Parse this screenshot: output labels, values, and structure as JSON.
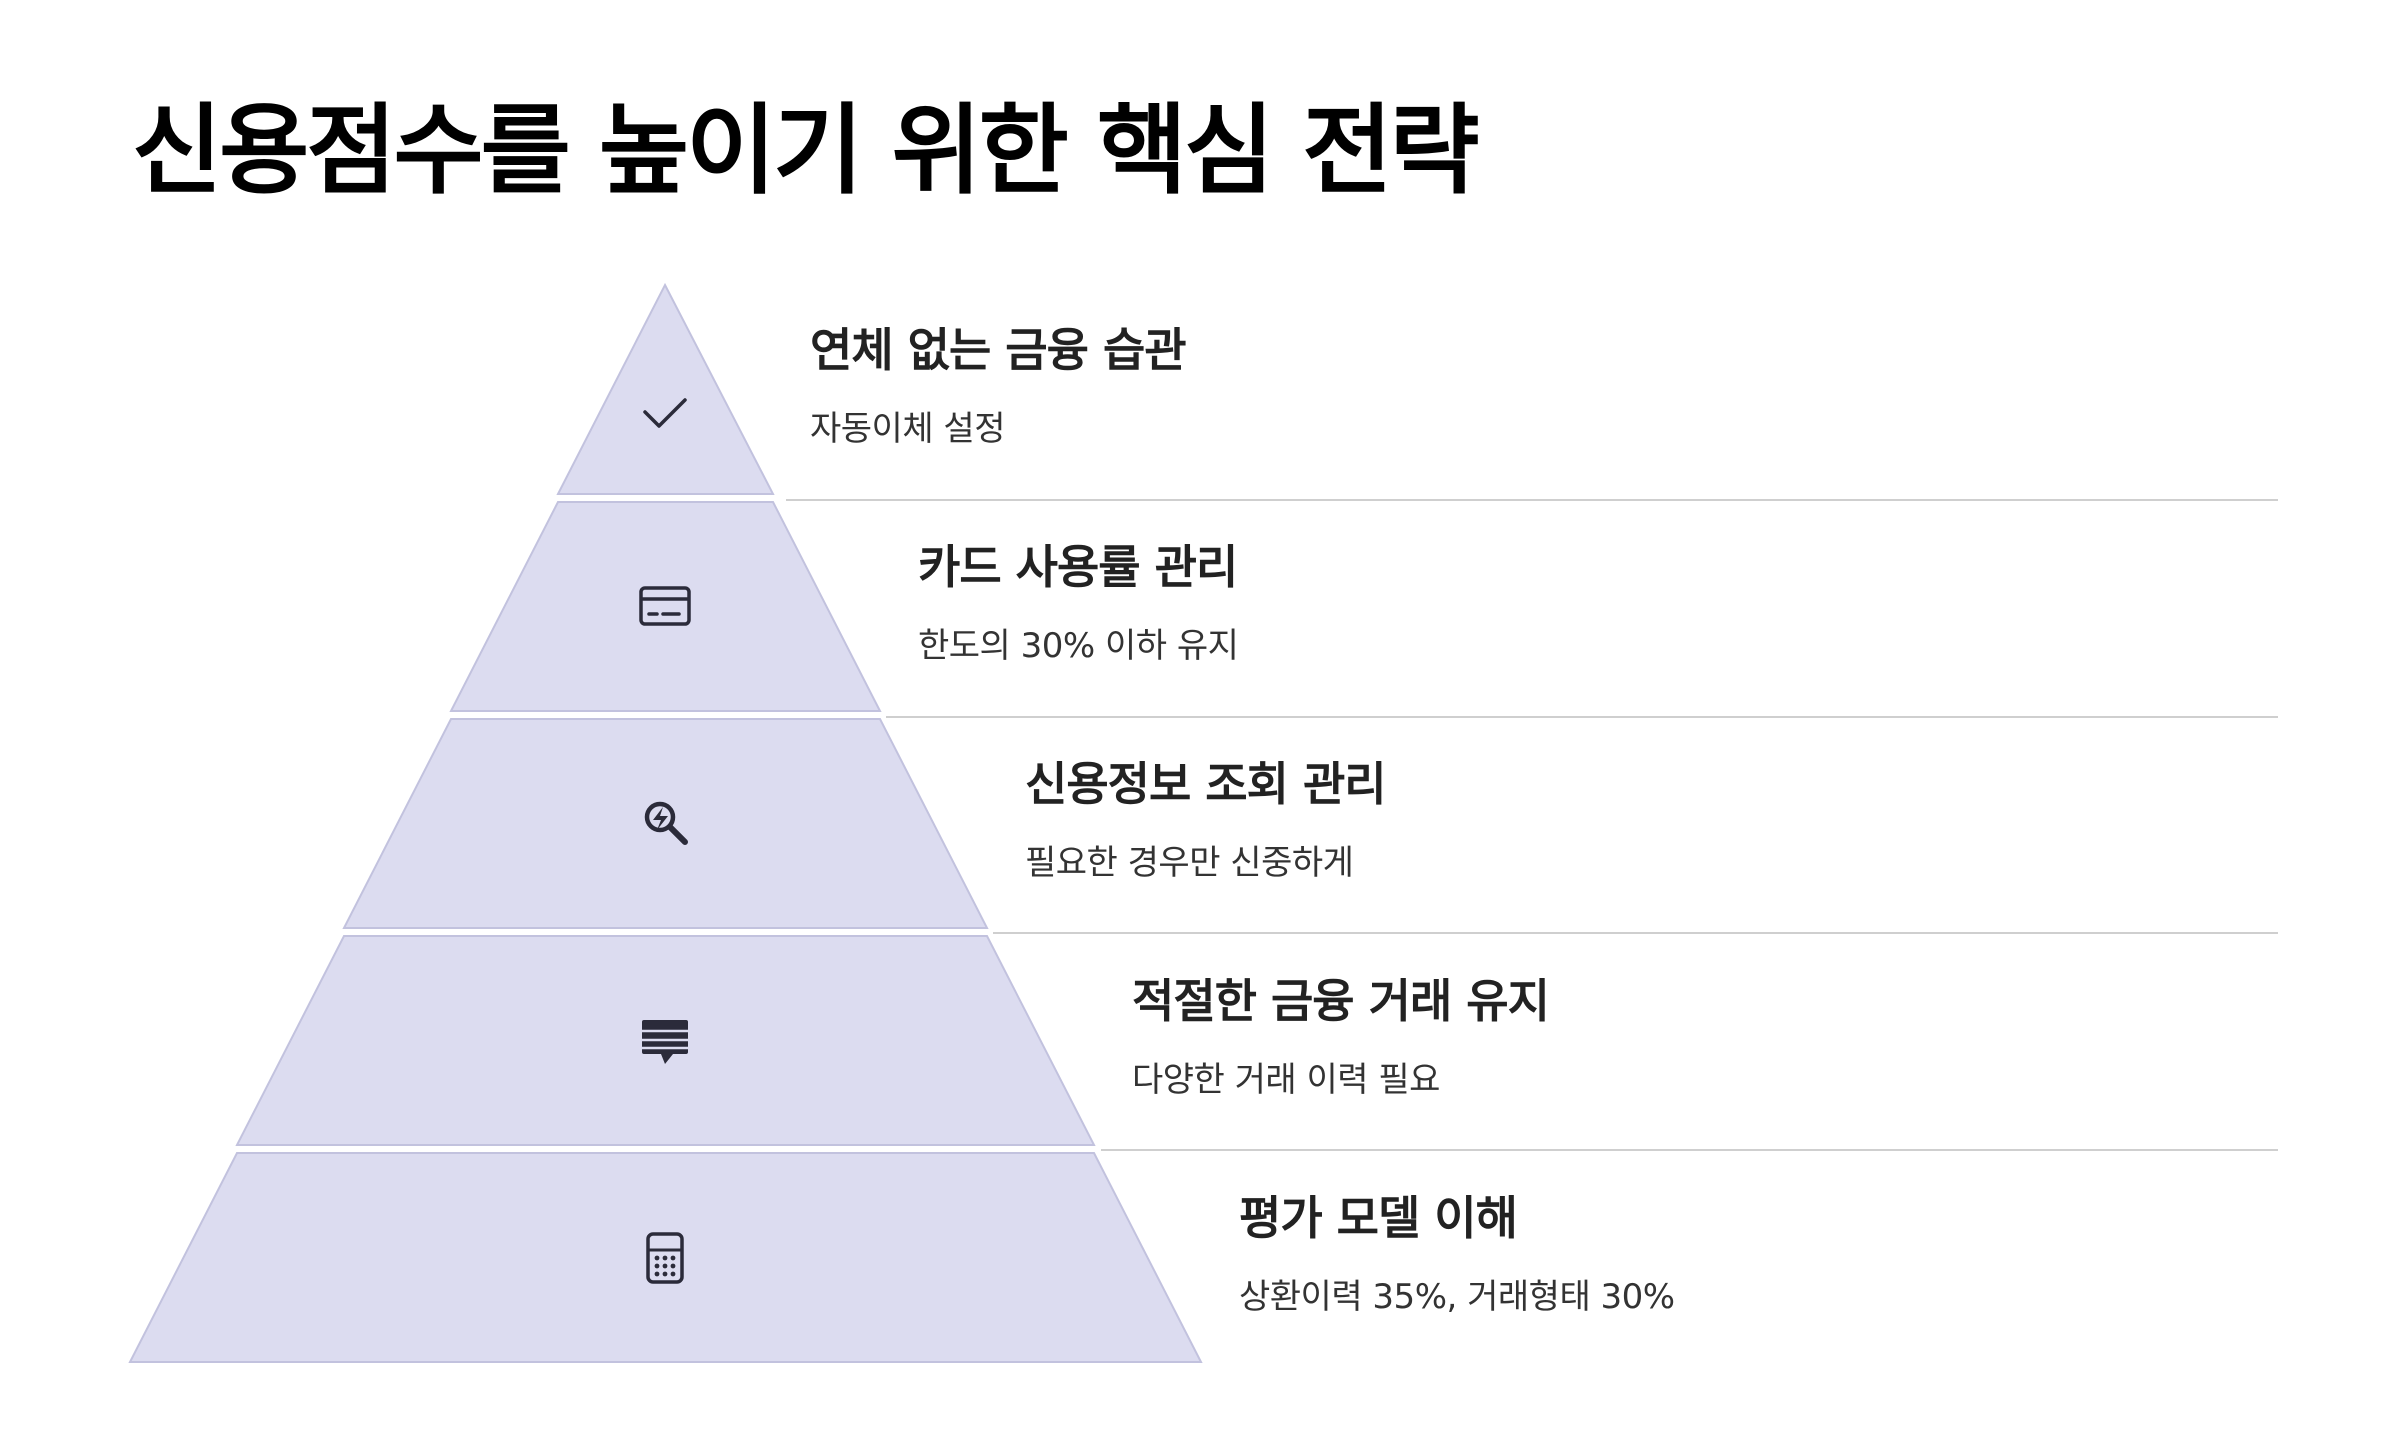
{
  "title": "신용점수를 높이기 위한 핵심 전략",
  "colors": {
    "tier_fill": "#dcdcf0",
    "tier_stroke": "#c2c2de",
    "separator": "#cfcfcf",
    "icon": "#2b2b3a"
  },
  "levels": [
    {
      "label": "연체 없는 금융 습관",
      "desc": "자동이체 설정",
      "icon": "check-icon"
    },
    {
      "label": "카드 사용률 관리",
      "desc": "한도의 30% 이하 유지",
      "icon": "credit-card-icon"
    },
    {
      "label": "신용정보 조회 관리",
      "desc": "필요한 경우만 신중하게",
      "icon": "search-zap-icon"
    },
    {
      "label": "적절한 금융 거래 유지",
      "desc": "다양한 거래 이력 필요",
      "icon": "message-list-icon"
    },
    {
      "label": "평가 모델 이해",
      "desc": "상환이력 35%, 거래형태 30%",
      "icon": "calculator-icon"
    }
  ]
}
